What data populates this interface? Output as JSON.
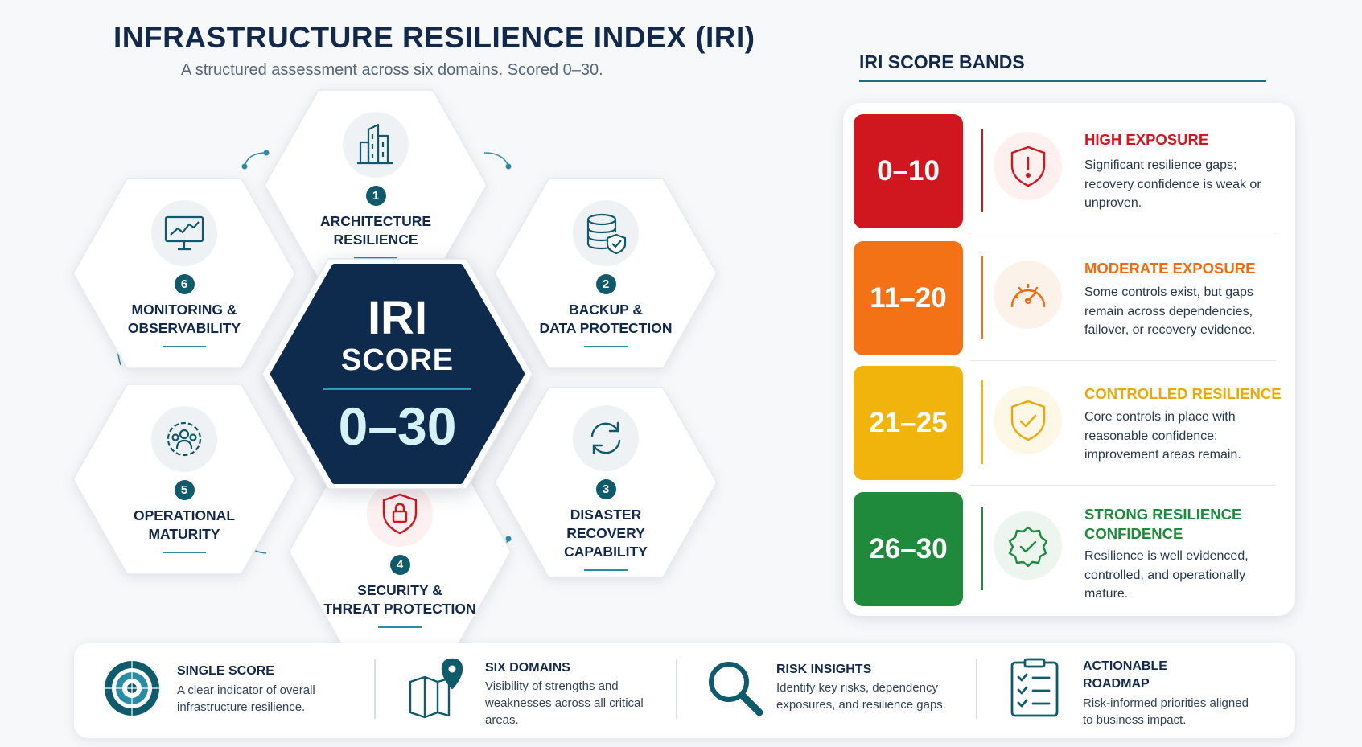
{
  "header": {
    "title": "INFRASTRUCTURE RESILIENCE INDEX (IRI)",
    "subtitle": "A structured assessment across six domains. Scored 0–30."
  },
  "center": {
    "line1": "IRI",
    "line2": "SCORE",
    "range": "0–30"
  },
  "domains": [
    {
      "number": "1",
      "label_line1": "ARCHITECTURE",
      "label_line2": "RESILIENCE",
      "icon": "building-icon"
    },
    {
      "number": "2",
      "label_line1": "BACKUP &",
      "label_line2": "DATA PROTECTION",
      "icon": "database-shield-icon"
    },
    {
      "number": "3",
      "label_line1": "DISASTER",
      "label_line2": "RECOVERY",
      "label_line3": "CAPABILITY",
      "icon": "refresh-icon"
    },
    {
      "number": "4",
      "label_line1": "SECURITY &",
      "label_line2": "THREAT PROTECTION",
      "icon": "shield-lock-icon"
    },
    {
      "number": "5",
      "label_line1": "OPERATIONAL",
      "label_line2": "MATURITY",
      "icon": "team-gear-icon"
    },
    {
      "number": "6",
      "label_line1": "MONITORING &",
      "label_line2": "OBSERVABILITY",
      "icon": "monitor-chart-icon"
    }
  ],
  "bands_panel": {
    "title": "IRI SCORE BANDS",
    "bands": [
      {
        "range": "0–10",
        "title": "HIGH EXPOSURE",
        "desc": "Significant resilience gaps; recovery confidence is weak or unproven.",
        "color": "#d0161e",
        "title_color": "#d0161e",
        "icon": "shield-alert-icon"
      },
      {
        "range": "11–20",
        "title": "MODERATE EXPOSURE",
        "desc": "Some controls exist, but gaps remain across dependencies, failover, or recovery evidence.",
        "color": "#f47216",
        "title_color": "#f26a10",
        "icon": "gauge-icon"
      },
      {
        "range": "21–25",
        "title": "CONTROLLED RESILIENCE",
        "desc": "Core controls in place with reasonable confidence; improvement areas remain.",
        "color": "#f0b40c",
        "title_color": "#eaa80a",
        "icon": "shield-check-icon"
      },
      {
        "range": "26–30",
        "title_line1": "STRONG RESILIENCE",
        "title_line2": "CONFIDENCE",
        "desc": "Resilience is well evidenced, controlled, and operationally mature.",
        "color": "#1f8a3c",
        "title_color": "#1f8a3c",
        "icon": "badge-check-icon"
      }
    ]
  },
  "features": [
    {
      "title": "SINGLE SCORE",
      "desc": "A clear indicator of overall infrastructure resilience.",
      "icon": "target-icon"
    },
    {
      "title": "SIX DOMAINS",
      "desc": "Visibility of strengths and weaknesses across all critical areas.",
      "icon": "map-pin-icon"
    },
    {
      "title": "RISK INSIGHTS",
      "desc": "Identify key risks, dependency exposures, and resilience gaps.",
      "icon": "magnifier-icon"
    },
    {
      "title_line1": "ACTIONABLE",
      "title_line2": "ROADMAP",
      "desc": "Risk-informed priorities aligned to business impact.",
      "icon": "checklist-icon"
    }
  ],
  "colors": {
    "navy": "#0e2a4d",
    "teal": "#0f5a6b",
    "accent": "#2a8ca3"
  }
}
